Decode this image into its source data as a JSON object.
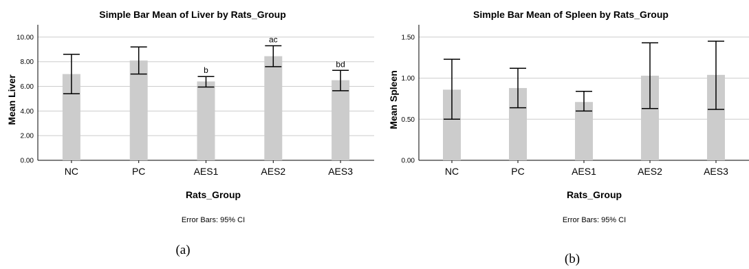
{
  "chart_data": [
    {
      "type": "bar",
      "title": "Simple Bar Mean of Liver by Rats_Group",
      "xlabel": "Rats_Group",
      "ylabel": "Mean Liver",
      "categories": [
        "NC",
        "PC",
        "AES1",
        "AES2",
        "AES3"
      ],
      "values": [
        7.0,
        8.1,
        6.4,
        8.45,
        6.5
      ],
      "ci_lower": [
        5.4,
        7.0,
        5.95,
        7.6,
        5.65
      ],
      "ci_upper": [
        8.6,
        9.2,
        6.8,
        9.3,
        7.3
      ],
      "annotations": [
        "",
        "",
        "b",
        "ac",
        "bd"
      ],
      "ylim": [
        0,
        11
      ],
      "yticks": [
        "0.00",
        "2.00",
        "4.00",
        "6.00",
        "8.00",
        "10.00"
      ],
      "ytick_values": [
        0,
        2,
        4,
        6,
        8,
        10
      ],
      "grid": true,
      "note": "Error Bars: 95% CI",
      "caption": "(a)",
      "bar_color": "#cccccc"
    },
    {
      "type": "bar",
      "title": "Simple Bar Mean of Spleen by Rats_Group",
      "xlabel": "Rats_Group",
      "ylabel": "Mean Spleen",
      "categories": [
        "NC",
        "PC",
        "AES1",
        "AES2",
        "AES3"
      ],
      "values": [
        0.86,
        0.88,
        0.71,
        1.03,
        1.04
      ],
      "ci_lower": [
        0.5,
        0.64,
        0.6,
        0.63,
        0.62
      ],
      "ci_upper": [
        1.23,
        1.12,
        0.84,
        1.43,
        1.45
      ],
      "annotations": [
        "",
        "",
        "",
        "",
        ""
      ],
      "ylim": [
        0,
        1.65
      ],
      "yticks": [
        "0.00",
        "0.50",
        "1.00",
        "1.50"
      ],
      "ytick_values": [
        0,
        0.5,
        1.0,
        1.5
      ],
      "grid": true,
      "note": "Error Bars: 95% CI",
      "caption": "(b)",
      "bar_color": "#cccccc"
    }
  ]
}
